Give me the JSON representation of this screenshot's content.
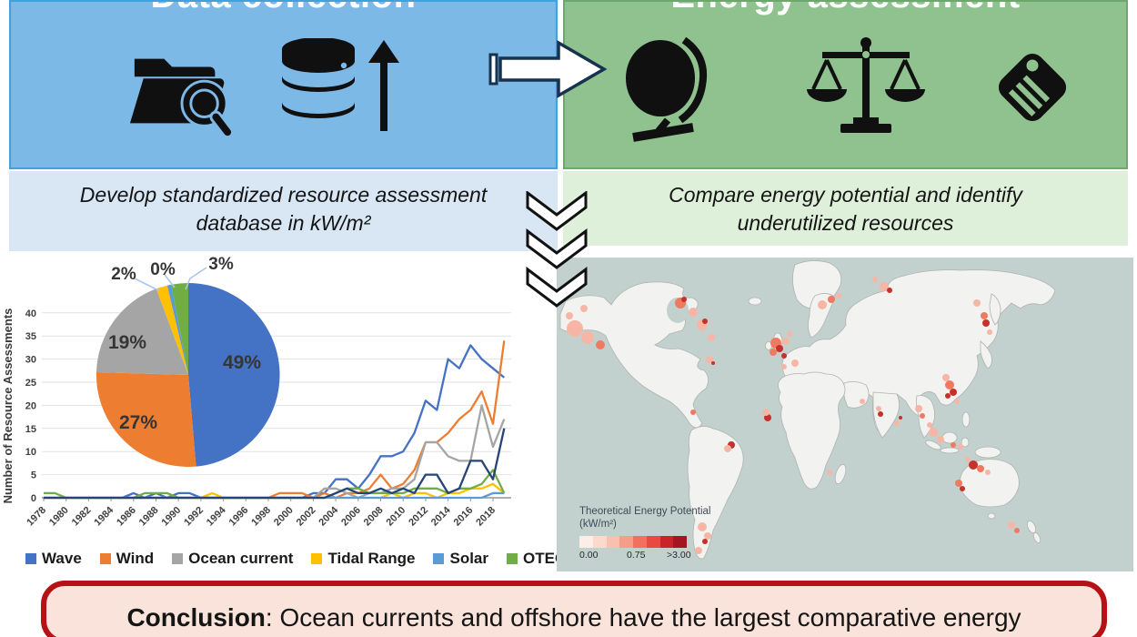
{
  "panels": {
    "data_collection": {
      "title": "Data collection",
      "caption_lines": [
        "Develop standardized resource assessment",
        "database in kW/m²"
      ]
    },
    "energy_assessment": {
      "title": "Energy assessment",
      "caption_lines": [
        "Compare energy potential and identify",
        "underutilized resources"
      ]
    }
  },
  "chart_data": [
    {
      "type": "pie",
      "labels": [
        "Wave",
        "Wind",
        "Ocean current",
        "Tidal Range",
        "Solar",
        "OTEC"
      ],
      "values": [
        49,
        27,
        19,
        2,
        0,
        3
      ],
      "display_labels": [
        "49%",
        "27%",
        "19%",
        "2%",
        "0%",
        "3%"
      ],
      "colors": [
        "#4472C4",
        "#ED7D31",
        "#A5A5A5",
        "#FFC000",
        "#5B9BD5",
        "#70AD47"
      ]
    },
    {
      "type": "line",
      "title": "",
      "xlabel": "",
      "ylabel": "Number of Resource Assessments",
      "ylim": [
        0,
        40
      ],
      "x": [
        1978,
        1979,
        1980,
        1981,
        1982,
        1983,
        1984,
        1985,
        1986,
        1987,
        1988,
        1989,
        1990,
        1991,
        1992,
        1993,
        1994,
        1995,
        1996,
        1997,
        1998,
        1999,
        2000,
        2001,
        2002,
        2003,
        2004,
        2005,
        2006,
        2007,
        2008,
        2009,
        2010,
        2011,
        2012,
        2013,
        2014,
        2015,
        2016,
        2017,
        2018,
        2019
      ],
      "series": [
        {
          "name": "Wave",
          "color": "#4472C4",
          "values": [
            0,
            0,
            0,
            0,
            0,
            0,
            0,
            0,
            1,
            0,
            1,
            0,
            1,
            1,
            0,
            0,
            0,
            0,
            0,
            0,
            0,
            0,
            0,
            0,
            1,
            1,
            4,
            4,
            2,
            5,
            9,
            9,
            10,
            14,
            21,
            19,
            30,
            28,
            33,
            30,
            28,
            26
          ]
        },
        {
          "name": "Wind",
          "color": "#ED7D31",
          "values": [
            0,
            0,
            0,
            0,
            0,
            0,
            0,
            0,
            0,
            0,
            0,
            0,
            0,
            0,
            0,
            0,
            0,
            0,
            0,
            0,
            0,
            1,
            1,
            1,
            0,
            1,
            0,
            1,
            1,
            2,
            5,
            2,
            3,
            6,
            12,
            12,
            14,
            17,
            19,
            23,
            16,
            34
          ]
        },
        {
          "name": "Ocean current",
          "color": "#A5A5A5",
          "values": [
            0,
            0,
            0,
            0,
            0,
            0,
            0,
            0,
            0,
            0,
            0,
            0,
            0,
            0,
            0,
            0,
            0,
            0,
            0,
            0,
            0,
            0,
            0,
            0,
            0,
            2,
            2,
            1,
            0,
            1,
            1,
            2,
            2,
            4,
            12,
            12,
            9,
            8,
            8,
            20,
            11,
            17
          ]
        },
        {
          "name": "Tidal Range",
          "color": "#FFC000",
          "values": [
            0,
            0,
            0,
            0,
            0,
            0,
            0,
            0,
            0,
            0,
            0,
            0,
            0,
            0,
            0,
            1,
            0,
            0,
            0,
            0,
            0,
            0,
            0,
            0,
            0,
            0,
            0,
            0,
            0,
            0,
            0,
            1,
            0,
            1,
            1,
            0,
            1,
            1,
            2,
            2,
            3,
            1
          ]
        },
        {
          "name": "Solar",
          "color": "#5B9BD5",
          "values": [
            0,
            0,
            0,
            0,
            0,
            0,
            0,
            0,
            0,
            0,
            0,
            0,
            0,
            0,
            0,
            0,
            0,
            0,
            0,
            0,
            0,
            0,
            0,
            0,
            0,
            0,
            0,
            0,
            0,
            0,
            0,
            0,
            0,
            0,
            0,
            0,
            0,
            0,
            0,
            0,
            1,
            1
          ]
        },
        {
          "name": "OTEC",
          "color": "#70AD47",
          "values": [
            1,
            1,
            0,
            0,
            0,
            0,
            0,
            0,
            0,
            1,
            1,
            1,
            0,
            0,
            0,
            0,
            0,
            0,
            0,
            0,
            0,
            0,
            0,
            0,
            0,
            0,
            1,
            2,
            2,
            1,
            1,
            1,
            1,
            2,
            2,
            2,
            1,
            2,
            2,
            3,
            6,
            1
          ]
        },
        {
          "name": "unlabeled dark navy series",
          "color": "#264478",
          "values": [
            0,
            0,
            0,
            0,
            0,
            0,
            0,
            0,
            0,
            0,
            0,
            0,
            0,
            0,
            0,
            0,
            0,
            0,
            0,
            0,
            0,
            0,
            0,
            0,
            0,
            0,
            1,
            2,
            1,
            1,
            2,
            1,
            2,
            1,
            5,
            5,
            1,
            2,
            8,
            8,
            4,
            15
          ]
        }
      ]
    }
  ],
  "legend": [
    {
      "label": "Wave",
      "color": "#4472C4"
    },
    {
      "label": "Wind",
      "color": "#ED7D31"
    },
    {
      "label": "Ocean current",
      "color": "#A5A5A5"
    },
    {
      "label": "Tidal Range",
      "color": "#FFC000"
    },
    {
      "label": "Solar",
      "color": "#5B9BD5"
    },
    {
      "label": "OTEC",
      "color": "#70AD47"
    }
  ],
  "map": {
    "legend_title_lines": [
      "Theoretical Energy Potential",
      "(kW/m²)"
    ],
    "scale_labels": [
      "0.00",
      "0.75",
      ">3.00"
    ],
    "scale_colors": [
      "#FDEDE7",
      "#FBD9CD",
      "#F9C0B0",
      "#F79C8A",
      "#F3705C",
      "#E84A42",
      "#C9232B",
      "#A31621"
    ]
  },
  "conclusion": {
    "label": "Conclusion",
    "text": ": Ocean currents and offshore have the largest comparative energy"
  }
}
